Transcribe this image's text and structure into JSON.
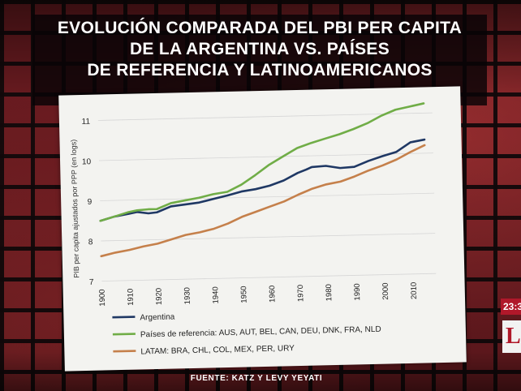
{
  "title_lines": [
    "EVOLUCIÓN COMPARADA DEL PBI PER CAPITA",
    "DE LA ARGENTINA VS. PAÍSES",
    "DE REFERENCIA Y LATINOAMERICANOS"
  ],
  "source": "FUENTE: KATZ Y LEVY YEYATI",
  "overlay": {
    "clock": "23:3",
    "logo_letter": "L"
  },
  "colors": {
    "argentina": "#1f3864",
    "referencia": "#70ad47",
    "latam": "#c5804b"
  },
  "chart_data": {
    "type": "line",
    "title": "",
    "xlabel": "",
    "ylabel": "PIB per capita ajustados por PPP (en logs)",
    "xlim": [
      1900,
      2018
    ],
    "ylim": [
      7,
      11.2
    ],
    "x_ticks": [
      "1900",
      "1910",
      "1920",
      "1930",
      "1940",
      "1950",
      "1960",
      "1970",
      "1980",
      "1990",
      "2000",
      "2010"
    ],
    "y_ticks": [
      "7",
      "8",
      "9",
      "10",
      "11"
    ],
    "grid": true,
    "legend_position": "bottom",
    "series": [
      {
        "name": "Argentina",
        "color_key": "argentina",
        "x": [
          1900,
          1905,
          1910,
          1913,
          1917,
          1920,
          1925,
          1930,
          1935,
          1940,
          1945,
          1950,
          1955,
          1960,
          1965,
          1970,
          1973,
          1975,
          1980,
          1985,
          1990,
          1995,
          2000,
          2005,
          2010,
          2015
        ],
        "values": [
          8.5,
          8.6,
          8.66,
          8.7,
          8.66,
          8.68,
          8.82,
          8.86,
          8.9,
          8.98,
          9.06,
          9.15,
          9.2,
          9.28,
          9.4,
          9.58,
          9.66,
          9.72,
          9.74,
          9.68,
          9.7,
          9.84,
          9.95,
          10.05,
          10.28,
          10.34
        ]
      },
      {
        "name": "Países de referencia: AUS, AUT, BEL, CAN, DEU, DNK, FRA, NLD",
        "color_key": "referencia",
        "x": [
          1900,
          1905,
          1910,
          1913,
          1917,
          1920,
          1925,
          1930,
          1935,
          1940,
          1945,
          1950,
          1955,
          1960,
          1965,
          1970,
          1975,
          1980,
          1985,
          1990,
          1995,
          2000,
          2005,
          2010,
          2015
        ],
        "values": [
          8.5,
          8.6,
          8.7,
          8.74,
          8.76,
          8.76,
          8.9,
          8.96,
          9.02,
          9.1,
          9.15,
          9.32,
          9.55,
          9.8,
          10.0,
          10.2,
          10.32,
          10.42,
          10.52,
          10.64,
          10.78,
          10.96,
          11.1,
          11.17,
          11.24
        ]
      },
      {
        "name": "LATAM: BRA, CHL, COL, MEX, PER, URY",
        "color_key": "latam",
        "x": [
          1900,
          1905,
          1910,
          1915,
          1920,
          1925,
          1930,
          1935,
          1940,
          1945,
          1950,
          1955,
          1960,
          1965,
          1970,
          1975,
          1980,
          1985,
          1990,
          1995,
          2000,
          2005,
          2010,
          2015
        ],
        "values": [
          7.62,
          7.7,
          7.76,
          7.84,
          7.9,
          8.0,
          8.1,
          8.16,
          8.24,
          8.36,
          8.52,
          8.64,
          8.76,
          8.88,
          9.04,
          9.18,
          9.28,
          9.34,
          9.46,
          9.6,
          9.72,
          9.86,
          10.04,
          10.2
        ]
      }
    ]
  }
}
